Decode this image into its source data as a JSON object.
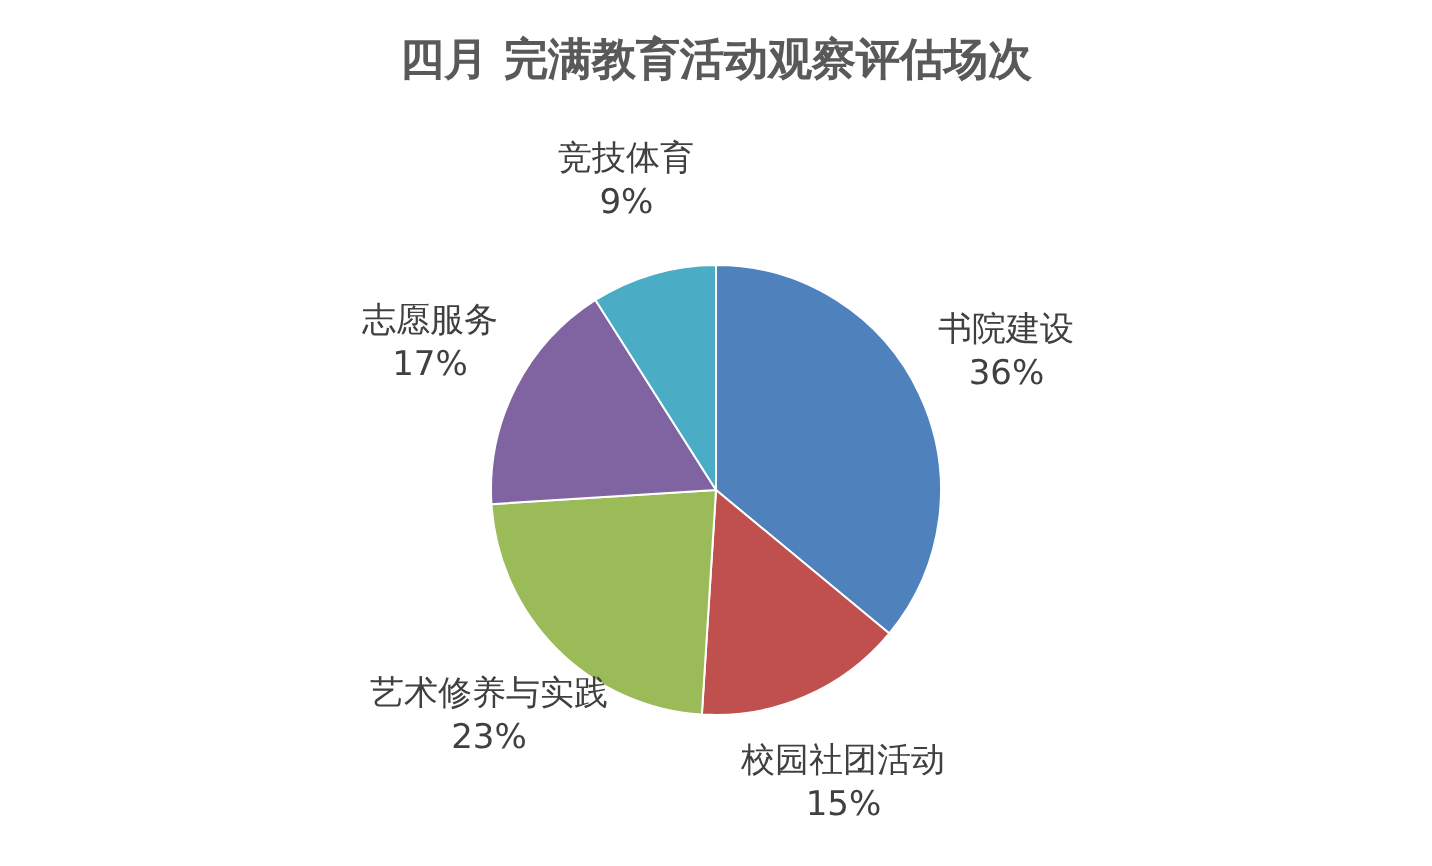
{
  "chart_data": {
    "type": "pie",
    "title": "四月  完满教育活动观察评估场次",
    "categories": [
      "书院建设",
      "校园社团活动",
      "艺术修养与实践",
      "志愿服务",
      "竞技体育"
    ],
    "values": [
      36,
      15,
      23,
      17,
      9
    ],
    "colors": [
      "#4f81bd",
      "#c0504d",
      "#9bbb59",
      "#8064a2",
      "#4bacc6"
    ],
    "value_labels": [
      "36%",
      "15%",
      "23%",
      "17%",
      "9%"
    ],
    "legend": false
  }
}
